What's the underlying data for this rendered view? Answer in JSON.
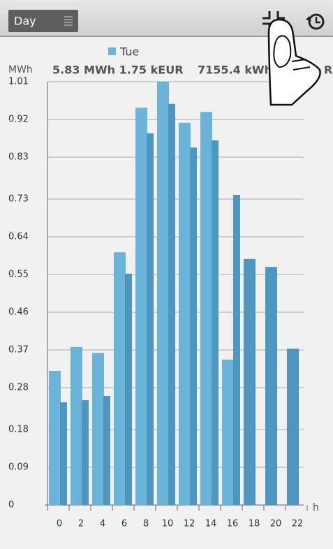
{
  "toolbar": {
    "period": "Day"
  },
  "chart_data": {
    "type": "bar",
    "legend": "Tue",
    "legend_color": "#6ab4da",
    "y_label": "MWh",
    "x_label": "h",
    "summary_1": "5.83 MWh 1.75 kEUR",
    "summary_2": "7155.4 kWh 2",
    "summary_3": "R",
    "categories": [
      "0",
      null,
      "2",
      null,
      "4",
      null,
      "6",
      null,
      "8",
      null,
      "10",
      null,
      "12",
      null,
      "14",
      null,
      "16",
      null,
      "18",
      null,
      "20",
      null,
      "22",
      null
    ],
    "values": [
      0.32,
      0.245,
      0.377,
      0.25,
      0.363,
      0.26,
      0.603,
      0.552,
      0.948,
      0.887,
      1.01,
      0.957,
      0.912,
      0.853,
      0.938,
      0.87,
      0.347,
      0.74,
      0.587,
      null,
      0.568,
      null,
      0.373,
      null
    ],
    "colors": [
      "#6ab4da",
      "#4e96c0",
      "#6ab4da",
      "#4e96c0",
      "#6ab4da",
      "#4e96c0",
      "#6ab4da",
      "#4e96c0",
      "#6ab4da",
      "#4e96c0",
      "#6ab4da",
      "#4e96c0",
      "#6ab4da",
      "#4e96c0",
      "#6ab4da",
      "#4e96c0",
      "#6ab4da",
      "#4e96c0",
      "#4e96c0",
      "#4e96c0",
      "#4e96c0",
      "#4e96c0",
      "#4e96c0",
      "#4e96c0"
    ],
    "ylim": [
      0,
      1.01
    ],
    "yticks": [
      0,
      0.09,
      0.18,
      0.28,
      0.37,
      0.46,
      0.55,
      0.64,
      0.73,
      0.83,
      0.92,
      1.01
    ],
    "grid": true
  }
}
